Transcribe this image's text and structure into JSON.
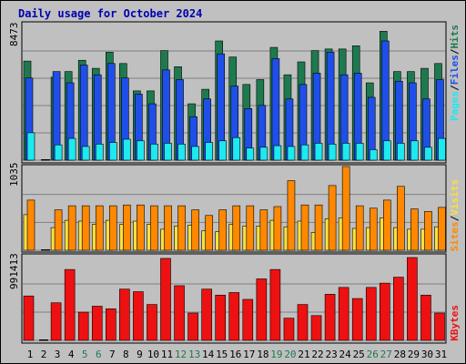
{
  "chart_data": [
    {
      "type": "bar",
      "title": "Daily usage for October 2024",
      "max_label": "8473",
      "ylim": [
        0,
        8473
      ],
      "categories": [
        "1",
        "2",
        "3",
        "4",
        "5",
        "6",
        "7",
        "8",
        "9",
        "10",
        "11",
        "12",
        "13",
        "14",
        "15",
        "16",
        "17",
        "18",
        "19",
        "20",
        "21",
        "22",
        "23",
        "24",
        "25",
        "26",
        "27",
        "28",
        "29",
        "30",
        "31"
      ],
      "weekend_days": [
        "5",
        "6",
        "12",
        "13",
        "19",
        "20",
        "26",
        "27"
      ],
      "series": [
        {
          "name": "Hits",
          "color": "#1e7a4e",
          "values": [
            6150,
            0,
            5150,
            5500,
            6200,
            5700,
            6700,
            6000,
            4300,
            4300,
            6800,
            5800,
            3500,
            4400,
            7400,
            6400,
            4700,
            5000,
            7000,
            5300,
            6100,
            6800,
            6900,
            6900,
            7100,
            4800,
            8000,
            5500,
            5500,
            5700,
            6000
          ]
        },
        {
          "name": "Files",
          "color": "#1f4fe8",
          "values": [
            5100,
            0,
            5500,
            4800,
            5900,
            5300,
            6000,
            5100,
            4100,
            3500,
            5600,
            5000,
            2700,
            3800,
            6600,
            4600,
            3200,
            3400,
            6300,
            3800,
            4700,
            5400,
            6700,
            5300,
            5400,
            3900,
            7400,
            4900,
            4800,
            3800,
            5000
          ]
        },
        {
          "name": "Pages",
          "color": "#1ee8f0",
          "values": [
            1700,
            0,
            950,
            1350,
            850,
            1000,
            1100,
            1300,
            1200,
            1000,
            1050,
            1000,
            850,
            1100,
            1200,
            1400,
            750,
            800,
            900,
            850,
            950,
            1050,
            1000,
            1050,
            1050,
            650,
            1200,
            1050,
            1200,
            800,
            1350
          ]
        }
      ],
      "axis_labels": {
        "hits": "Hits",
        "files": "Files",
        "pages": "Pages",
        "sep": "/"
      }
    },
    {
      "type": "bar",
      "max_label": "1035",
      "ylim": [
        0,
        1035
      ],
      "series": [
        {
          "name": "Visits",
          "color": "#f8e040",
          "values": [
            440,
            0,
            280,
            370,
            360,
            320,
            370,
            320,
            360,
            320,
            260,
            300,
            310,
            240,
            230,
            320,
            300,
            300,
            370,
            290,
            360,
            220,
            390,
            400,
            270,
            280,
            400,
            280,
            260,
            260,
            290
          ]
        },
        {
          "name": "Sites",
          "color": "#ff8800",
          "values": [
            620,
            0,
            500,
            550,
            550,
            550,
            550,
            560,
            560,
            550,
            550,
            550,
            500,
            430,
            500,
            550,
            550,
            500,
            540,
            860,
            560,
            560,
            800,
            1035,
            550,
            520,
            620,
            790,
            510,
            480,
            530
          ]
        }
      ],
      "axis_labels": {
        "sites": "Sites",
        "visits": "Visits",
        "sep": "/"
      }
    },
    {
      "type": "bar",
      "max_label": "991413",
      "ylim": [
        0,
        991413
      ],
      "series": [
        {
          "name": "KBytes",
          "color": "#ee1111",
          "values": [
            520000,
            0,
            440000,
            830000,
            330000,
            400000,
            370000,
            600000,
            570000,
            420000,
            960000,
            640000,
            320000,
            600000,
            530000,
            560000,
            480000,
            720000,
            830000,
            260000,
            420000,
            290000,
            540000,
            620000,
            490000,
            620000,
            670000,
            740000,
            970000,
            530000,
            320000
          ]
        }
      ],
      "axis_labels": {
        "kbytes": "KBytes"
      }
    }
  ]
}
